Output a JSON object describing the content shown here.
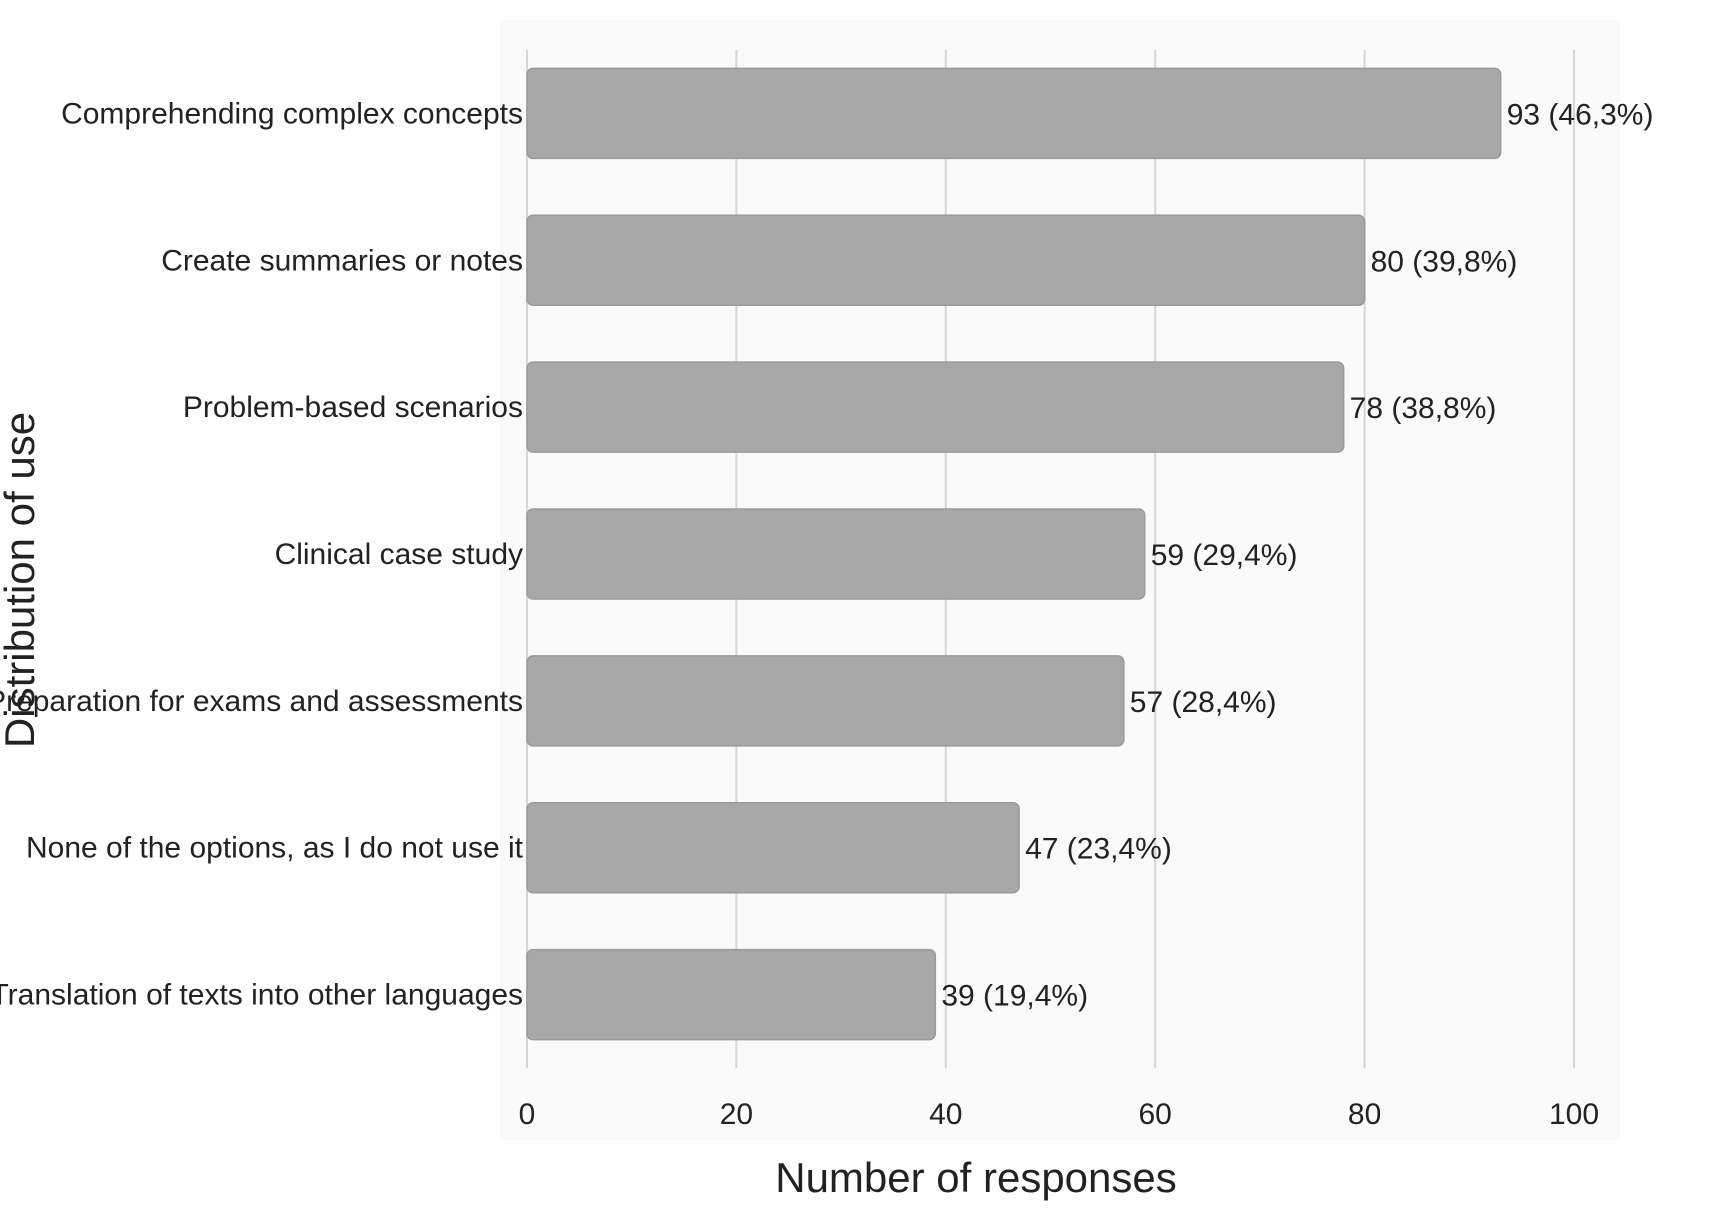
{
  "chart_data": {
    "type": "bar",
    "orientation": "horizontal",
    "xlabel": "Number of responses",
    "ylabel": "Distribution of use",
    "xlim": [
      0,
      100
    ],
    "xticks": [
      "0",
      "20",
      "40",
      "60",
      "80",
      "100"
    ],
    "grid": "vertical",
    "categories": [
      "Comprehending complex concepts",
      "Create summaries or notes",
      "Problem-based scenarios",
      "Clinical case study",
      "Preparation for exams and assessments",
      "None of the options, as I do not use it",
      "Translation of texts into other languages"
    ],
    "values": [
      93,
      80,
      78,
      59,
      57,
      47,
      39
    ],
    "value_labels": [
      "93 (46,3%)",
      "80 (39,8%)",
      "78 (38,8%)",
      "59 (29,4%)",
      "57 (28,4%)",
      "47 (23,4%)",
      "39 (19,4%)"
    ],
    "colors": {
      "bar": "#a8a8a8",
      "bar_edge": "#9a9a9a",
      "grid": "#d6d6d6",
      "plot_bg": "#fafafa"
    }
  }
}
